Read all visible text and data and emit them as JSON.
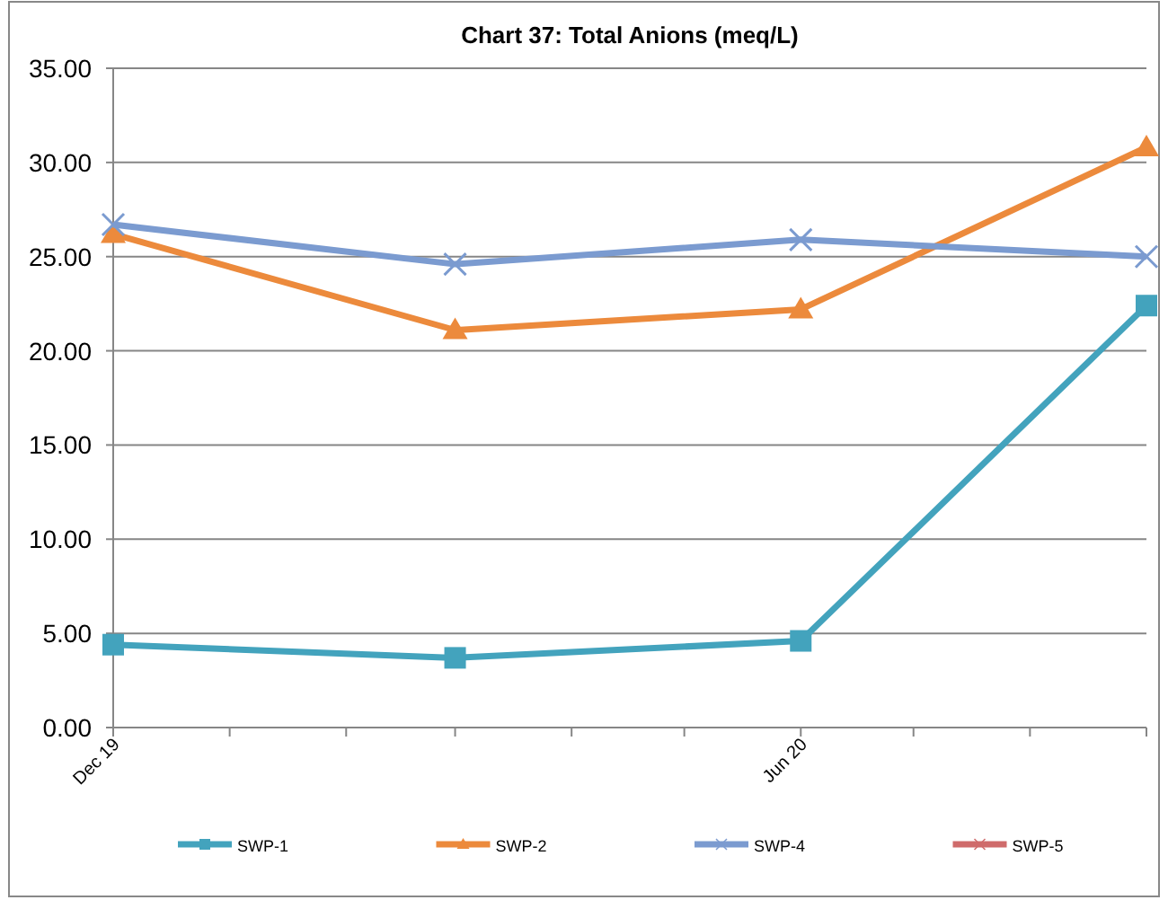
{
  "chart_data": {
    "type": "line",
    "title": "Chart 37: Total Anions (meq/L)",
    "x": [
      "2019-12",
      "2020-03",
      "2020-06",
      "2020-09"
    ],
    "xlim": [
      "2019-12",
      "2020-09"
    ],
    "xticks": [
      {
        "value": "2019-12",
        "label": "Dec 19"
      },
      {
        "value": "2020-01",
        "label": null
      },
      {
        "value": "2020-02",
        "label": null
      },
      {
        "value": "2020-03",
        "label": null
      },
      {
        "value": "2020-04",
        "label": null
      },
      {
        "value": "2020-05",
        "label": null
      },
      {
        "value": "2020-06",
        "label": "Jun 20"
      },
      {
        "value": "2020-07",
        "label": null
      },
      {
        "value": "2020-08",
        "label": null
      },
      {
        "value": "2020-09",
        "label": null
      }
    ],
    "ylim": [
      0,
      35
    ],
    "yticks": [
      {
        "value": 0,
        "label": "0.00"
      },
      {
        "value": 5,
        "label": "5.00"
      },
      {
        "value": 10,
        "label": "10.00"
      },
      {
        "value": 15,
        "label": "15.00"
      },
      {
        "value": 20,
        "label": "20.00"
      },
      {
        "value": 25,
        "label": "25.00"
      },
      {
        "value": 30,
        "label": "30.00"
      },
      {
        "value": 35,
        "label": "35.00"
      }
    ],
    "grid": "y",
    "legend": "bottom",
    "series": [
      {
        "name": "SWP-1",
        "color": "#43a3bd",
        "marker": "square",
        "values": [
          4.4,
          3.7,
          4.6,
          22.4
        ]
      },
      {
        "name": "SWP-2",
        "color": "#ec8a3c",
        "marker": "triangle",
        "values": [
          26.2,
          21.1,
          22.2,
          30.8
        ]
      },
      {
        "name": "SWP-4",
        "color": "#7b9bd0",
        "marker": "cross",
        "values": [
          26.7,
          24.6,
          25.9,
          25.0
        ]
      },
      {
        "name": "SWP-5",
        "color": "#cf6b6b",
        "marker": "cross",
        "values": [
          null,
          null,
          null,
          null
        ]
      }
    ]
  }
}
